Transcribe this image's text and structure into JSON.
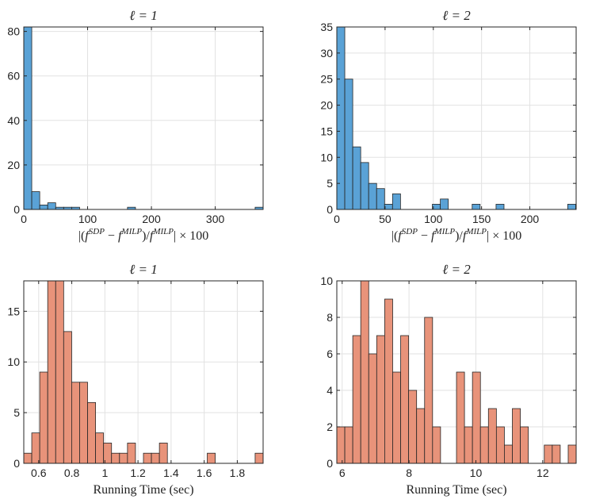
{
  "chart_data": [
    {
      "type": "bar",
      "title": "ℓ = 1",
      "xlabel": "|(f^{SDP} − f^{MILP})/f^{MILP}| × 100",
      "xlabel_parts": {
        "open": "|(",
        "f1": "f",
        "sup1": "SDP",
        "minus": " − ",
        "f2": "f",
        "sup2": "MILP",
        "slash": ")/",
        "f3": "f",
        "sup3": "MILP",
        "close": "| × 100"
      },
      "ylabel": "",
      "color": "#5aa2d6",
      "bin_width": 12.5,
      "xlim": [
        0,
        375
      ],
      "ylim": [
        0,
        82
      ],
      "xticks": [
        0,
        100,
        200,
        300
      ],
      "yticks": [
        0,
        20,
        40,
        60,
        80
      ],
      "bins": [
        {
          "start": 0,
          "count": 82
        },
        {
          "start": 12.5,
          "count": 8
        },
        {
          "start": 25,
          "count": 2
        },
        {
          "start": 37.5,
          "count": 3
        },
        {
          "start": 50,
          "count": 1
        },
        {
          "start": 62.5,
          "count": 1
        },
        {
          "start": 75,
          "count": 1
        },
        {
          "start": 162.5,
          "count": 1
        },
        {
          "start": 362.5,
          "count": 1
        }
      ]
    },
    {
      "type": "bar",
      "title": "ℓ = 2",
      "xlabel": "|(f^{SDP} − f^{MILP})/f^{MILP}| × 100",
      "xlabel_parts": {
        "open": "|(",
        "f1": "f",
        "sup1": "SDP",
        "minus": " − ",
        "f2": "f",
        "sup2": "MILP",
        "slash": ")/",
        "f3": "f",
        "sup3": "MILP",
        "close": "| × 100"
      },
      "ylabel": "",
      "color": "#5aa2d6",
      "bin_width": 8.25,
      "xlim": [
        0,
        248
      ],
      "ylim": [
        0,
        35
      ],
      "xticks": [
        0,
        50,
        100,
        150,
        200
      ],
      "yticks": [
        0,
        5,
        10,
        15,
        20,
        25,
        30,
        35
      ],
      "bins": [
        {
          "start": 0,
          "count": 35
        },
        {
          "start": 8.25,
          "count": 25
        },
        {
          "start": 16.5,
          "count": 12
        },
        {
          "start": 24.75,
          "count": 9
        },
        {
          "start": 33,
          "count": 5
        },
        {
          "start": 41.25,
          "count": 4
        },
        {
          "start": 49.5,
          "count": 1
        },
        {
          "start": 57.75,
          "count": 3
        },
        {
          "start": 99,
          "count": 1
        },
        {
          "start": 107.25,
          "count": 2
        },
        {
          "start": 140.25,
          "count": 1
        },
        {
          "start": 165,
          "count": 1
        },
        {
          "start": 239.25,
          "count": 1
        }
      ]
    },
    {
      "type": "bar",
      "title": "ℓ = 1",
      "xlabel": "Running Time (sec)",
      "ylabel": "",
      "color": "#e8937a",
      "bin_width": 0.0482,
      "xlim": [
        0.51,
        1.956
      ],
      "ylim": [
        0,
        18
      ],
      "xticks": [
        0.6,
        0.8,
        1,
        1.2,
        1.4,
        1.6,
        1.8
      ],
      "xtick_labels": [
        "0.6",
        "0.8",
        "1",
        "1.2",
        "1.4",
        "1.6",
        "1.8"
      ],
      "yticks": [
        0,
        5,
        10,
        15
      ],
      "counts": [
        1,
        3,
        9,
        18,
        18,
        13,
        8,
        8,
        6,
        3,
        2,
        1,
        1,
        2,
        0,
        1,
        1,
        2,
        0,
        0,
        0,
        0,
        0,
        1,
        0,
        0,
        0,
        0,
        0,
        1
      ]
    },
    {
      "type": "bar",
      "title": "ℓ = 2",
      "xlabel": "Running Time (sec)",
      "ylabel": "",
      "color": "#e8937a",
      "bin_width": 0.2387,
      "xlim": [
        5.84,
        13.0
      ],
      "ylim": [
        0,
        10
      ],
      "xticks": [
        6,
        8,
        10,
        12
      ],
      "yticks": [
        0,
        2,
        4,
        6,
        8,
        10
      ],
      "counts": [
        2,
        2,
        7,
        10,
        6,
        7,
        9,
        5,
        7,
        4,
        3,
        8,
        2,
        0,
        0,
        5,
        2,
        5,
        2,
        3,
        2,
        1,
        3,
        2,
        0,
        0,
        1,
        1,
        0,
        1
      ]
    }
  ]
}
